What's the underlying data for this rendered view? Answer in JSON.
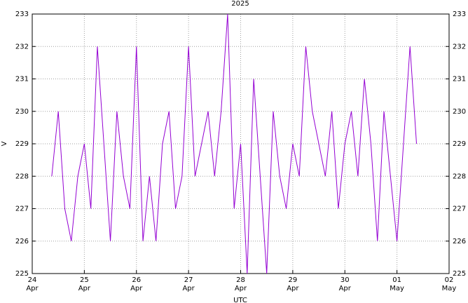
{
  "chart_data": {
    "type": "line",
    "title": "2025",
    "xlabel": "UTC",
    "ylabel": "V",
    "x": [
      "2025-04-24T09:00",
      "2025-04-24T12:00",
      "2025-04-24T15:00",
      "2025-04-24T18:00",
      "2025-04-24T21:00",
      "2025-04-25T00:00",
      "2025-04-25T03:00",
      "2025-04-25T06:00",
      "2025-04-25T09:00",
      "2025-04-25T12:00",
      "2025-04-25T15:00",
      "2025-04-25T18:00",
      "2025-04-25T21:00",
      "2025-04-26T00:00",
      "2025-04-26T03:00",
      "2025-04-26T06:00",
      "2025-04-26T09:00",
      "2025-04-26T12:00",
      "2025-04-26T15:00",
      "2025-04-26T18:00",
      "2025-04-26T21:00",
      "2025-04-27T00:00",
      "2025-04-27T03:00",
      "2025-04-27T06:00",
      "2025-04-27T09:00",
      "2025-04-27T12:00",
      "2025-04-27T15:00",
      "2025-04-27T18:00",
      "2025-04-27T21:00",
      "2025-04-28T00:00",
      "2025-04-28T03:00",
      "2025-04-28T06:00",
      "2025-04-28T09:00",
      "2025-04-28T12:00",
      "2025-04-28T15:00",
      "2025-04-28T18:00",
      "2025-04-28T21:00",
      "2025-04-29T00:00",
      "2025-04-29T03:00",
      "2025-04-29T06:00",
      "2025-04-29T09:00",
      "2025-04-29T12:00",
      "2025-04-29T15:00",
      "2025-04-29T18:00",
      "2025-04-29T21:00",
      "2025-04-30T00:00",
      "2025-04-30T03:00",
      "2025-04-30T06:00",
      "2025-04-30T09:00",
      "2025-04-30T12:00",
      "2025-04-30T15:00",
      "2025-04-30T18:00",
      "2025-04-30T21:00",
      "2025-05-01T00:00",
      "2025-05-01T03:00",
      "2025-05-01T06:00",
      "2025-05-01T09:00"
    ],
    "series": [
      {
        "color": "#9400d3",
        "values": [
          228,
          230,
          227,
          226,
          228,
          229,
          227,
          232,
          229,
          226,
          230,
          228,
          227,
          232,
          226,
          228,
          226,
          229,
          230,
          227,
          228,
          232,
          228,
          229,
          230,
          228,
          230,
          233,
          227,
          229,
          225,
          231,
          228,
          225,
          230,
          228,
          227,
          229,
          228,
          232,
          230,
          229,
          228,
          230,
          227,
          229,
          230,
          228,
          231,
          229,
          226,
          230,
          228,
          226,
          229,
          232,
          229
        ]
      }
    ],
    "xlim": [
      "2025-04-24T00:00",
      "2025-05-02T00:00"
    ],
    "xticks": [
      {
        "value": "2025-04-24T00:00",
        "label": "24\nApr"
      },
      {
        "value": "2025-04-25T00:00",
        "label": "25\nApr"
      },
      {
        "value": "2025-04-26T00:00",
        "label": "26\nApr"
      },
      {
        "value": "2025-04-27T00:00",
        "label": "27\nApr"
      },
      {
        "value": "2025-04-28T00:00",
        "label": "28\nApr"
      },
      {
        "value": "2025-04-29T00:00",
        "label": "29\nApr"
      },
      {
        "value": "2025-04-30T00:00",
        "label": "30\nApr"
      },
      {
        "value": "2025-05-01T00:00",
        "label": "01\nMay"
      },
      {
        "value": "2025-05-02T00:00",
        "label": "02\nMay"
      }
    ],
    "ylim": [
      225,
      233
    ],
    "yticks": [
      225,
      226,
      227,
      228,
      229,
      230,
      231,
      232,
      233
    ],
    "grid": true
  }
}
